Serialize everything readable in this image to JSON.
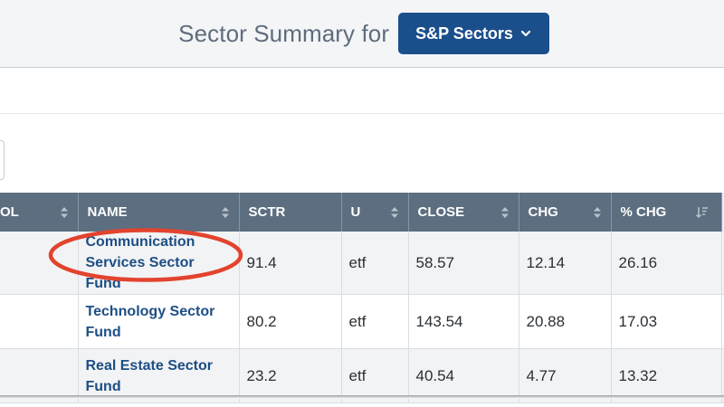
{
  "header": {
    "title": "Sector Summary for",
    "dropdown_label": "S&P Sectors"
  },
  "table": {
    "columns": [
      "OL",
      "NAME",
      "SCTR",
      "U",
      "CLOSE",
      "CHG",
      "% CHG"
    ],
    "rows": [
      {
        "name": "Communication Services Sector Fund",
        "sctr": "91.4",
        "u": "etf",
        "close": "58.57",
        "chg": "12.14",
        "pct_chg": "26.16"
      },
      {
        "name": "Technology Sector Fund",
        "sctr": "80.2",
        "u": "etf",
        "close": "143.54",
        "chg": "20.88",
        "pct_chg": "17.03"
      },
      {
        "name": "Real Estate Sector Fund",
        "sctr": "23.2",
        "u": "etf",
        "close": "40.54",
        "chg": "4.77",
        "pct_chg": "13.32"
      }
    ]
  },
  "colors": {
    "dropdown_bg": "#1b4f8c",
    "header_row_bg": "#5c6e80",
    "link": "#1d4e85",
    "highlight": "#e2432e"
  },
  "icons": [
    "chevron-down-icon",
    "sort-both-icon",
    "sort-descending-icon"
  ]
}
